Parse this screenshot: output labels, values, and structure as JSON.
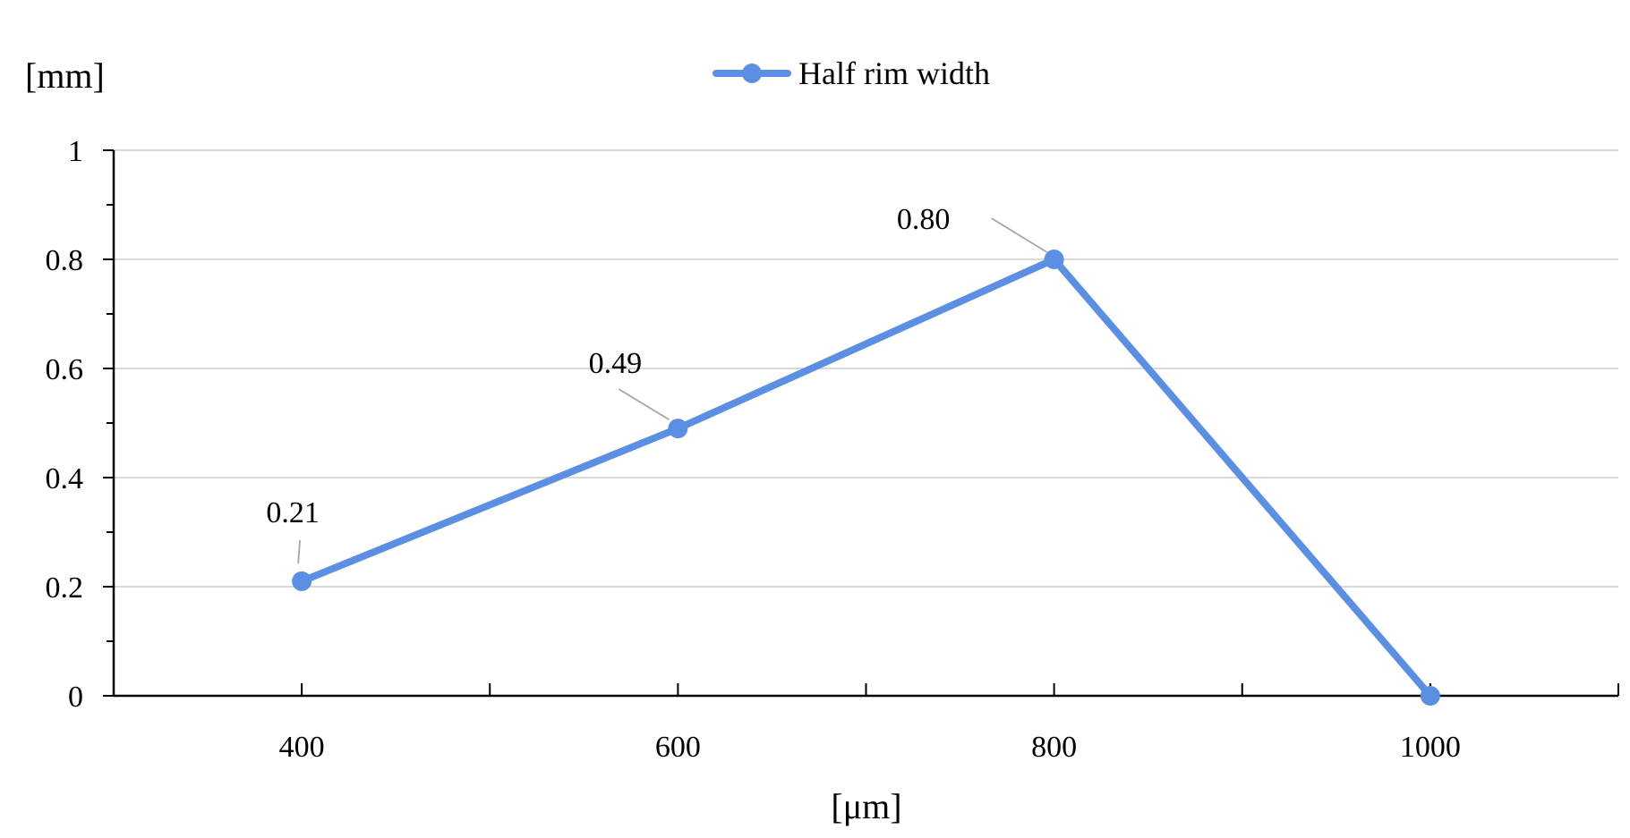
{
  "chart_data": {
    "type": "line",
    "title": "",
    "xlabel": "[μm]",
    "ylabel": "[mm]",
    "xlim": [
      300,
      1100
    ],
    "ylim": [
      0,
      1
    ],
    "x_ticks": [
      400,
      600,
      800,
      1000
    ],
    "y_ticks": [
      {
        "value": 0,
        "label": "0"
      },
      {
        "value": 0.2,
        "label": "0.2"
      },
      {
        "value": 0.4,
        "label": "0.4"
      },
      {
        "value": 0.6,
        "label": "0.6"
      },
      {
        "value": 0.8,
        "label": "0.8"
      },
      {
        "value": 1,
        "label": "1"
      }
    ],
    "grid": true,
    "legend_position": "top-center",
    "series": [
      {
        "name": "Half rim width",
        "color": "#5B8FE3",
        "points": [
          {
            "x": 400,
            "y": 0.21,
            "label": "0.21"
          },
          {
            "x": 600,
            "y": 0.49,
            "label": "0.49"
          },
          {
            "x": 800,
            "y": 0.8,
            "label": "0.80"
          },
          {
            "x": 1000,
            "y": 0.0,
            "label": ""
          }
        ]
      }
    ]
  }
}
